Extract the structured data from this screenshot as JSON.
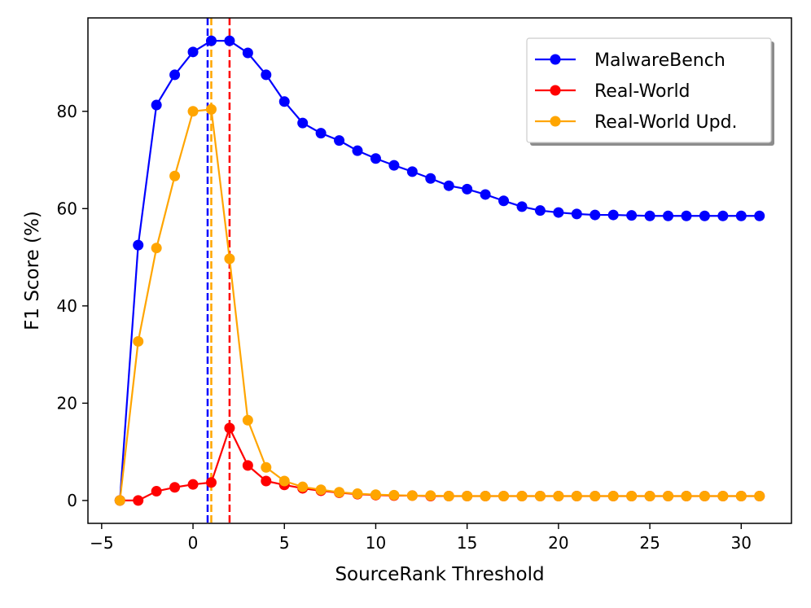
{
  "chart_data": {
    "type": "line",
    "xlabel": "SourceRank Threshold",
    "ylabel": "F1 Score (%)",
    "xlim": [
      -5.75,
      32.75
    ],
    "ylim": [
      -4.7,
      99.2
    ],
    "xticks": [
      -5,
      0,
      5,
      10,
      15,
      20,
      25,
      30
    ],
    "yticks": [
      0,
      20,
      40,
      60,
      80
    ],
    "xtick_labels": [
      "−5",
      "0",
      "5",
      "10",
      "15",
      "20",
      "25",
      "30"
    ],
    "ytick_labels": [
      "0",
      "20",
      "40",
      "60",
      "80"
    ],
    "grid": false,
    "legend_position": "top-right",
    "x": [
      -4,
      -3,
      -2,
      -1,
      0,
      1,
      2,
      3,
      4,
      5,
      6,
      7,
      8,
      9,
      10,
      11,
      12,
      13,
      14,
      15,
      16,
      17,
      18,
      19,
      20,
      21,
      22,
      23,
      24,
      25,
      26,
      27,
      28,
      29,
      30,
      31
    ],
    "series": [
      {
        "name": "MalwareBench",
        "color": "#0000ff",
        "values": [
          0,
          52.5,
          81.3,
          87.5,
          92.2,
          94.5,
          94.5,
          92.0,
          87.5,
          82.0,
          77.6,
          75.5,
          74.0,
          71.9,
          70.3,
          68.9,
          67.6,
          66.2,
          64.7,
          64.0,
          62.9,
          61.6,
          60.4,
          59.6,
          59.2,
          58.9,
          58.7,
          58.7,
          58.6,
          58.5,
          58.5,
          58.5,
          58.5,
          58.5,
          58.5,
          58.5
        ]
      },
      {
        "name": "Real-World",
        "color": "#ff0000",
        "values": [
          0,
          0,
          1.9,
          2.7,
          3.3,
          3.7,
          14.9,
          7.2,
          4.0,
          3.2,
          2.5,
          2.0,
          1.6,
          1.3,
          1.1,
          1.0,
          1.0,
          0.9,
          0.9,
          0.9,
          0.9,
          0.9,
          0.9,
          0.9,
          0.9,
          0.9,
          0.9,
          0.9,
          0.9,
          0.9,
          0.9,
          0.9,
          0.9,
          0.9,
          0.9,
          0.9
        ]
      },
      {
        "name": "Real-World Upd.",
        "color": "#ffa500",
        "values": [
          0,
          32.7,
          51.9,
          66.7,
          80.0,
          80.4,
          49.7,
          16.5,
          6.8,
          4.0,
          2.8,
          2.2,
          1.7,
          1.4,
          1.2,
          1.1,
          1.0,
          1.0,
          0.9,
          0.9,
          0.9,
          0.9,
          0.9,
          0.9,
          0.9,
          0.9,
          0.9,
          0.9,
          0.9,
          0.9,
          0.9,
          0.9,
          0.9,
          0.9,
          0.9,
          0.9
        ]
      }
    ],
    "vertical_lines": [
      {
        "x": 0.8,
        "color": "#0000ff",
        "style": "dashed"
      },
      {
        "x": 1.0,
        "color": "#ffa500",
        "style": "dashed"
      },
      {
        "x": 2.0,
        "color": "#ff0000",
        "style": "dashed"
      }
    ]
  }
}
